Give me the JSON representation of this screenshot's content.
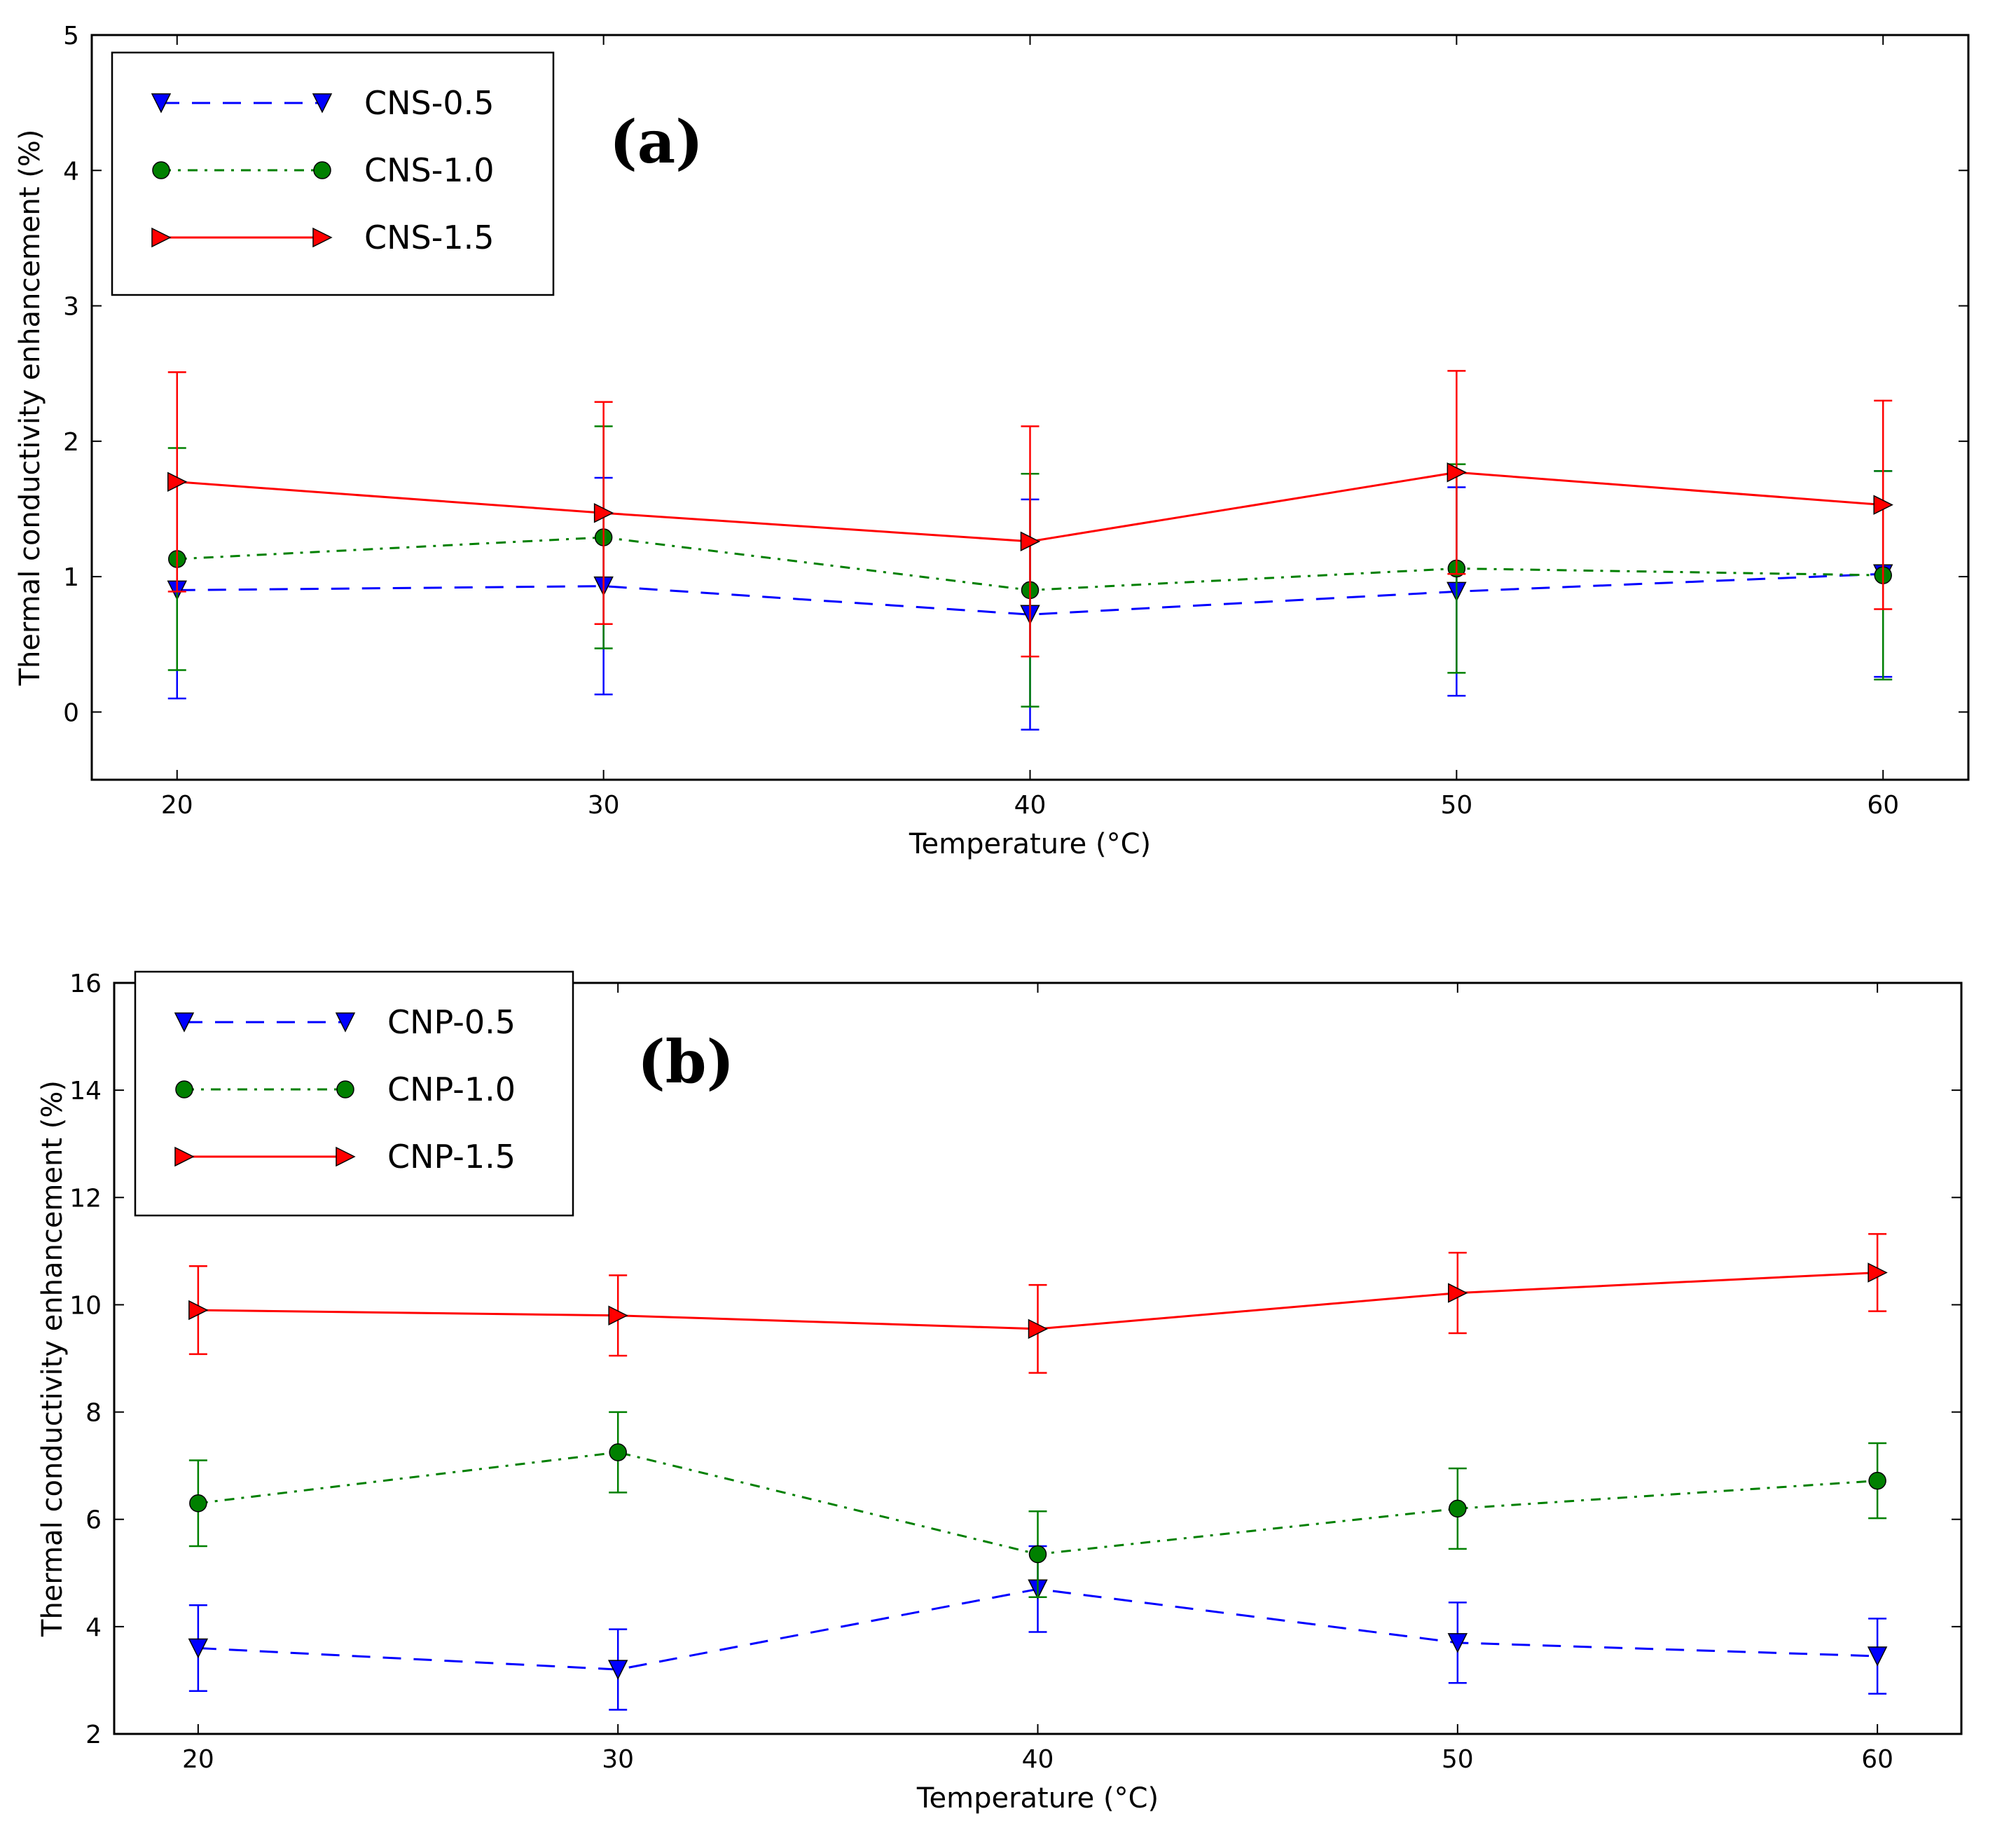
{
  "chart_data": [
    {
      "type": "line",
      "panel_label": "(a)",
      "xlabel": "Temperature (°C)",
      "ylabel": "Thermal conductivity enhancement (%)",
      "xlim": [
        18,
        62
      ],
      "ylim": [
        -0.5,
        5
      ],
      "xticks": [
        20,
        30,
        40,
        50,
        60
      ],
      "yticks": [
        0,
        1,
        2,
        3,
        4,
        5
      ],
      "x": [
        20,
        30,
        40,
        50,
        60
      ],
      "legend_position": "top-left",
      "series": [
        {
          "name": "CNS-0.5",
          "color": "#0000ff",
          "dash": "dashed",
          "marker": "triangle-down",
          "values": [
            0.9,
            0.93,
            0.72,
            0.89,
            1.02
          ],
          "errors": [
            0.8,
            0.8,
            0.85,
            0.77,
            0.76
          ]
        },
        {
          "name": "CNS-1.0",
          "color": "#008000",
          "dash": "dashdot",
          "marker": "circle",
          "values": [
            1.13,
            1.29,
            0.9,
            1.06,
            1.01
          ],
          "errors": [
            0.82,
            0.82,
            0.86,
            0.77,
            0.77
          ]
        },
        {
          "name": "CNS-1.5",
          "color": "#ff0000",
          "dash": "solid",
          "marker": "triangle-right",
          "values": [
            1.7,
            1.47,
            1.26,
            1.77,
            1.53
          ],
          "errors": [
            0.81,
            0.82,
            0.85,
            0.75,
            0.77
          ]
        }
      ]
    },
    {
      "type": "line",
      "panel_label": "(b)",
      "xlabel": "Temperature (°C)",
      "ylabel": "Thermal conductivity enhancement (%)",
      "xlim": [
        18,
        62
      ],
      "ylim": [
        2,
        16
      ],
      "xticks": [
        20,
        30,
        40,
        50,
        60
      ],
      "yticks": [
        2,
        4,
        6,
        8,
        10,
        12,
        14,
        16
      ],
      "x": [
        20,
        30,
        40,
        50,
        60
      ],
      "legend_position": "top-left",
      "series": [
        {
          "name": "CNP-0.5",
          "color": "#0000ff",
          "dash": "dashed",
          "marker": "triangle-down",
          "values": [
            3.6,
            3.2,
            4.7,
            3.7,
            3.45
          ],
          "errors": [
            0.8,
            0.75,
            0.8,
            0.75,
            0.7
          ]
        },
        {
          "name": "CNP-1.0",
          "color": "#008000",
          "dash": "dashdot",
          "marker": "circle",
          "values": [
            6.3,
            7.25,
            5.35,
            6.2,
            6.72
          ],
          "errors": [
            0.8,
            0.75,
            0.8,
            0.75,
            0.7
          ]
        },
        {
          "name": "CNP-1.5",
          "color": "#ff0000",
          "dash": "solid",
          "marker": "triangle-right",
          "values": [
            9.9,
            9.8,
            9.55,
            10.22,
            10.6
          ],
          "errors": [
            0.82,
            0.75,
            0.82,
            0.75,
            0.72
          ]
        }
      ]
    }
  ]
}
